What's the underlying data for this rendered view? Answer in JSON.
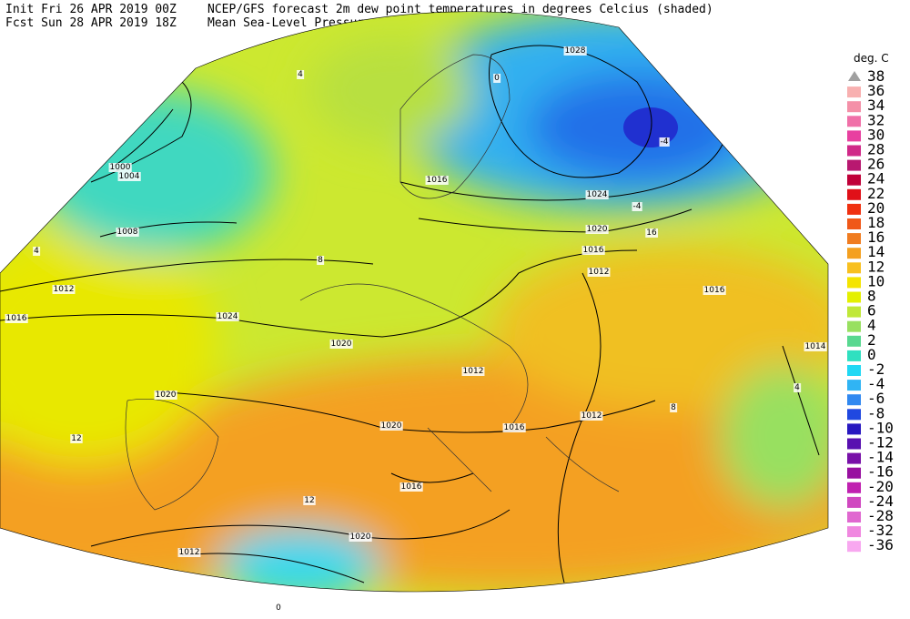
{
  "header": {
    "init": "Init  Fri 26 APR 2019 00Z",
    "fcst": "Fcst Sun 28 APR 2019 18Z",
    "title": "NCEP/GFS forecast 2m dew point temperatures in degrees Celcius (shaded)",
    "subtitle": "Mean Sea-Level Pressure (hPa) (black)."
  },
  "legend": {
    "unit": "deg. C",
    "levels": [
      38,
      36,
      34,
      32,
      30,
      28,
      26,
      24,
      22,
      20,
      18,
      16,
      14,
      12,
      10,
      8,
      6,
      4,
      2,
      0,
      -2,
      -4,
      -6,
      -8,
      -10,
      -12,
      -14,
      -16,
      -20,
      -24,
      -28,
      -32,
      -36
    ],
    "colors": [
      "#a0a0a0",
      "#f8b0b0",
      "#f490a8",
      "#f070a8",
      "#e840a0",
      "#d02888",
      "#b81870",
      "#c00038",
      "#e01018",
      "#f03010",
      "#f05818",
      "#f07c20",
      "#f4a020",
      "#f8c020",
      "#f4e400",
      "#e4f000",
      "#c0e838",
      "#98e060",
      "#58d890",
      "#30e0c0",
      "#20d8f4",
      "#30b4f4",
      "#3088f0",
      "#2048e0",
      "#2818c0",
      "#5810b0",
      "#7810a8",
      "#9810a0",
      "#c020b0",
      "#d048c0",
      "#e068d0",
      "#f088e0",
      "#f8a8f0"
    ]
  },
  "map_labels": [
    "1028",
    "1024",
    "1020",
    "1016",
    "1012",
    "1008",
    "1004",
    "1000",
    "1024",
    "1020",
    "1016",
    "1012",
    "1020",
    "1016",
    "1012",
    "1016",
    "1020",
    "1012",
    "1016",
    "1020",
    "1016",
    "1012",
    "1014",
    "4",
    "0",
    "-4",
    "8",
    "12",
    "4",
    "12",
    "8",
    "4",
    "0",
    "16",
    "-4"
  ]
}
